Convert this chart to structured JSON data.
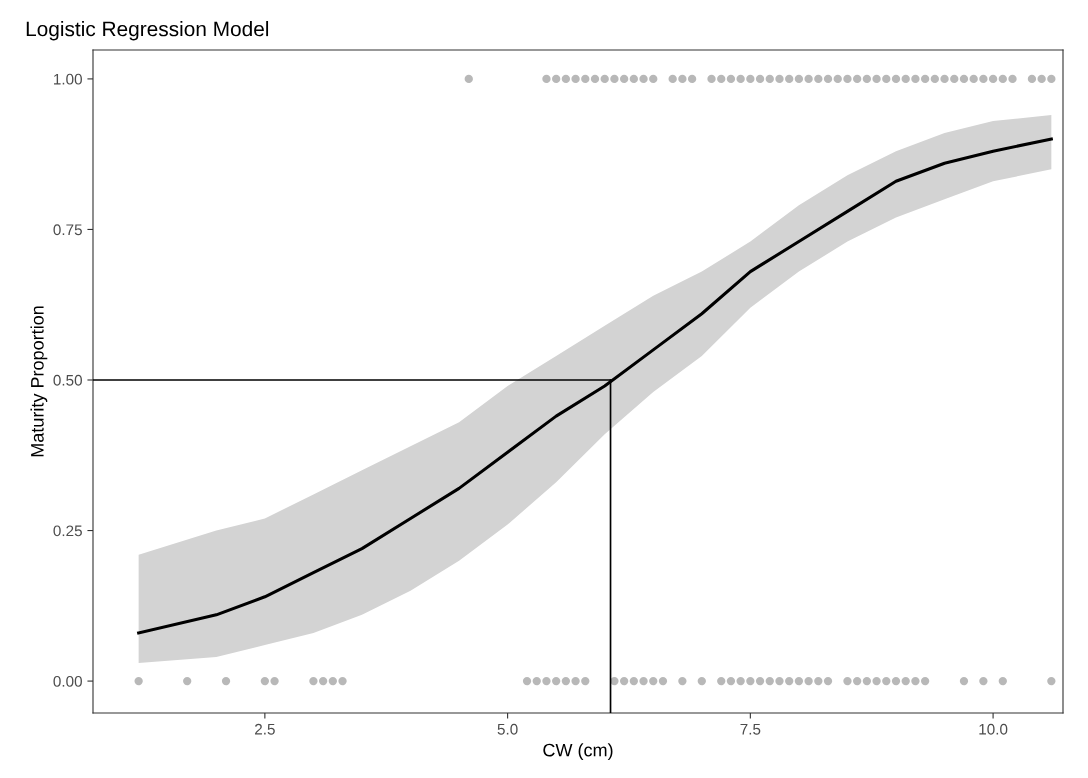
{
  "chart_data": {
    "type": "scatter",
    "title": "Logistic Regression Model",
    "xlabel": "CW (cm)",
    "ylabel": "Maturity Proportion",
    "xlim": [
      0.73,
      10.72
    ],
    "ylim": [
      -0.053,
      1.048
    ],
    "xticks": [
      {
        "value": 2.5,
        "label": "2.5"
      },
      {
        "value": 5.0,
        "label": "5.0"
      },
      {
        "value": 7.5,
        "label": "7.5"
      },
      {
        "value": 10.0,
        "label": "10.0"
      }
    ],
    "yticks": [
      {
        "value": 0,
        "label": "0.00"
      },
      {
        "value": 0.25,
        "label": "0.25"
      },
      {
        "value": 0.5,
        "label": "0.50"
      },
      {
        "value": 0.75,
        "label": "0.75"
      },
      {
        "value": 1.0,
        "label": "1.00"
      }
    ],
    "grid": false,
    "legend": false,
    "series": [
      {
        "marker": "circle",
        "color": "#000000",
        "x": [
          1.2,
          1.7,
          2.1,
          2.5,
          2.6,
          3.0,
          3.1,
          3.2,
          3.3,
          5.2,
          5.3,
          5.4,
          5.5,
          5.6,
          5.7,
          5.8,
          6.1,
          6.2,
          6.3,
          6.4,
          6.5,
          6.6,
          6.8,
          7.0,
          7.2,
          7.3,
          7.4,
          7.5,
          7.6,
          7.7,
          7.8,
          7.9,
          8.0,
          8.1,
          8.2,
          8.3,
          8.5,
          8.6,
          8.7,
          8.8,
          8.9,
          9.0,
          9.1,
          9.2,
          9.3,
          9.7,
          9.9,
          10.1,
          10.6,
          4.6,
          5.4,
          5.5,
          5.6,
          5.7,
          5.8,
          5.9,
          6.0,
          6.1,
          6.2,
          6.3,
          6.4,
          6.5,
          6.7,
          6.8,
          6.9,
          7.1,
          7.2,
          7.3,
          7.4,
          7.5,
          7.6,
          7.7,
          7.8,
          7.9,
          8.0,
          8.1,
          8.2,
          8.3,
          8.4,
          8.5,
          8.6,
          8.7,
          8.8,
          8.9,
          9.0,
          9.1,
          9.2,
          9.3,
          9.4,
          9.5,
          9.6,
          9.7,
          9.8,
          9.9,
          10.0,
          10.1,
          10.2,
          10.4,
          10.5,
          10.6
        ],
        "values": [
          0,
          0,
          0,
          0,
          0,
          0,
          0,
          0,
          0,
          0,
          0,
          0,
          0,
          0,
          0,
          0,
          0,
          0,
          0,
          0,
          0,
          0,
          0,
          0,
          0,
          0,
          0,
          0,
          0,
          0,
          0,
          0,
          0,
          0,
          0,
          0,
          0,
          0,
          0,
          0,
          0,
          0,
          0,
          0,
          0,
          0,
          0,
          0,
          0,
          1,
          1,
          1,
          1,
          1,
          1,
          1,
          1,
          1,
          1,
          1,
          1,
          1,
          1,
          1,
          1,
          1,
          1,
          1,
          1,
          1,
          1,
          1,
          1,
          1,
          1,
          1,
          1,
          1,
          1,
          1,
          1,
          1,
          1,
          1,
          1,
          1,
          1,
          1,
          1,
          1,
          1,
          1,
          1,
          1,
          1,
          1,
          1,
          1,
          1,
          1
        ]
      },
      {
        "type": "line",
        "color": "#000000",
        "x": [
          1.2,
          2.0,
          2.5,
          3.0,
          3.5,
          4.0,
          4.5,
          5.0,
          5.5,
          6.0,
          6.5,
          7.0,
          7.5,
          8.0,
          8.5,
          9.0,
          9.5,
          10.0,
          10.6
        ],
        "values": [
          0.08,
          0.11,
          0.14,
          0.18,
          0.22,
          0.27,
          0.32,
          0.38,
          0.44,
          0.49,
          0.55,
          0.61,
          0.68,
          0.73,
          0.78,
          0.83,
          0.86,
          0.88,
          0.9
        ],
        "lower": [
          0.03,
          0.04,
          0.06,
          0.08,
          0.11,
          0.15,
          0.2,
          0.26,
          0.33,
          0.41,
          0.48,
          0.54,
          0.62,
          0.68,
          0.73,
          0.77,
          0.8,
          0.83,
          0.85
        ],
        "upper": [
          0.21,
          0.25,
          0.27,
          0.31,
          0.35,
          0.39,
          0.43,
          0.49,
          0.54,
          0.59,
          0.64,
          0.68,
          0.73,
          0.79,
          0.84,
          0.88,
          0.91,
          0.93,
          0.94
        ]
      }
    ],
    "ref_lines": [
      {
        "axis": "y",
        "value": 0.5,
        "color": "#000000"
      },
      {
        "axis": "x",
        "value": 6.06,
        "color": "#000000"
      }
    ]
  }
}
